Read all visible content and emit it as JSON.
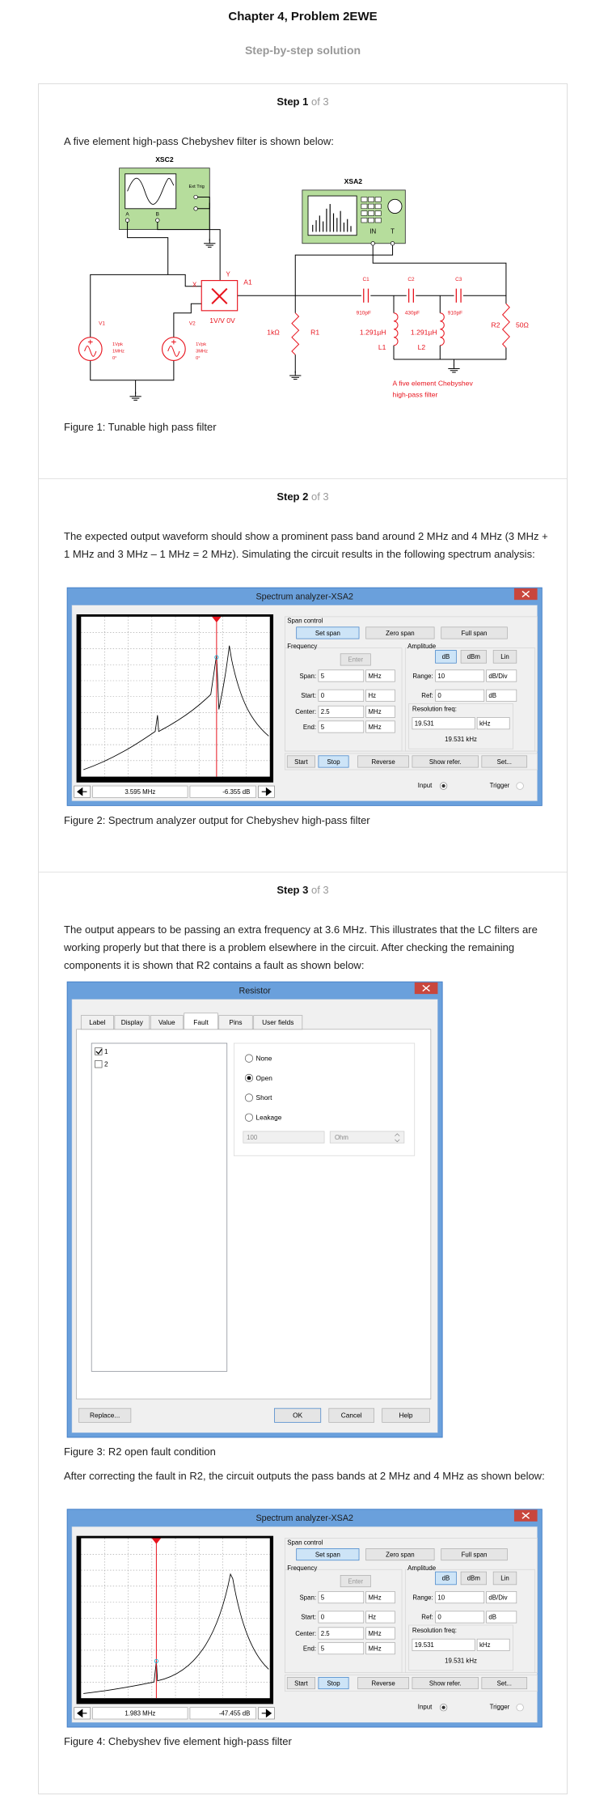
{
  "header": {
    "title": "Chapter 4, Problem 2EWE",
    "subtitle": "Step-by-step solution"
  },
  "steps": [
    {
      "label": "Step 1",
      "count": "of 3",
      "text": "A five element high-pass Chebyshev filter is shown below:",
      "caption": "Figure 1: Tunable high pass filter"
    },
    {
      "label": "Step 2",
      "count": "of 3",
      "text": "The expected output waveform should show a prominent pass band around 2 MHz and 4 MHz (3 MHz + 1 MHz and 3 MHz – 1 MHz = 2 MHz). Simulating the circuit results in the following spectrum analysis:",
      "caption": "Figure 2: Spectrum analyzer output for Chebyshev high-pass filter"
    },
    {
      "label": "Step 3",
      "count": "of 3",
      "text": "The output appears to be passing an extra frequency at 3.6 MHz. This illustrates that the LC filters are working properly but that there is a problem elsewhere in the circuit. After checking the remaining components it is shown that R2 contains a fault as shown below:",
      "caption": "Figure 3: R2 open fault condition",
      "text2": "After correcting the fault in R2, the circuit outputs the pass bands at 2 MHz and 4 MHz as shown below:",
      "caption2": "Figure 4: Chebyshev five element high-pass filter"
    }
  ],
  "circuit": {
    "scope_name": "XSC2",
    "ext_trig": "Ext Trig",
    "scope_a": "A",
    "scope_b": "B",
    "analyzer_name": "XSA2",
    "analyzer_in": "IN",
    "analyzer_t": "T",
    "v1": "V1",
    "v1_amp": "1Vpk",
    "v1_freq": "1MHz",
    "v1_phase": "0°",
    "v2": "V2",
    "v2_amp": "1Vpk",
    "v2_freq": "3MHz",
    "v2_phase": "0°",
    "mult_x": "X",
    "mult_y": "Y",
    "mult_name": "A1",
    "mult_gain": "1V/V 0V",
    "r1_value": "1kΩ",
    "r1": "R1",
    "c1": "C1",
    "c1_value": "910pF",
    "l1_value": "1.291µH",
    "l1": "L1",
    "c2": "C2",
    "c2_value": "430pF",
    "l2_value": "1.291µH",
    "l2": "L2",
    "c3": "C3",
    "c3_value": "910pF",
    "r2": "R2",
    "r2_value": "50Ω",
    "note_line1": "A five element Chebyshev",
    "note_line2": "high-pass filter"
  },
  "analyzers": [
    {
      "title": "Spectrum analyzer-XSA2",
      "span_control": "Span control",
      "set_span": "Set span",
      "zero_span": "Zero span",
      "full_span": "Full span",
      "frequency": "Frequency",
      "amplitude": "Amplitude",
      "enter": "Enter",
      "db": "dB",
      "dbm": "dBm",
      "lin": "Lin",
      "span_label": "Span:",
      "span_value": "5",
      "span_unit": "MHz",
      "range_label": "Range:",
      "range_value": "10",
      "range_unit": "dB/Div",
      "start_label": "Start:",
      "start_value": "0",
      "start_unit": "Hz",
      "ref_label": "Ref:",
      "ref_value": "0",
      "ref_unit": "dB",
      "center_label": "Center:",
      "center_value": "2.5",
      "center_unit": "MHz",
      "resolution_label": "Resolution freq:",
      "resolution_value": "19.531",
      "resolution_unit": "kHz",
      "resolution_readout": "19.531 kHz",
      "end_label": "End:",
      "end_value": "5",
      "end_unit": "MHz",
      "start_button": "Start",
      "stop_button": "Stop",
      "reverse_button": "Reverse",
      "show_refer_button": "Show refer.",
      "set_button": "Set...",
      "input": "Input",
      "trigger": "Trigger",
      "marker_frequency": "3.595 MHz",
      "marker_level": "-6.355  dB"
    },
    {
      "title": "Spectrum analyzer-XSA2",
      "span_control": "Span control",
      "set_span": "Set span",
      "zero_span": "Zero span",
      "full_span": "Full span",
      "frequency": "Frequency",
      "amplitude": "Amplitude",
      "enter": "Enter",
      "db": "dB",
      "dbm": "dBm",
      "lin": "Lin",
      "span_label": "Span:",
      "span_value": "5",
      "span_unit": "MHz",
      "range_label": "Range:",
      "range_value": "10",
      "range_unit": "dB/Div",
      "start_label": "Start:",
      "start_value": "0",
      "start_unit": "Hz",
      "ref_label": "Ref:",
      "ref_value": "0",
      "ref_unit": "dB",
      "center_label": "Center:",
      "center_value": "2.5",
      "center_unit": "MHz",
      "resolution_label": "Resolution freq:",
      "resolution_value": "19.531",
      "resolution_unit": "kHz",
      "resolution_readout": "19.531 kHz",
      "end_label": "End:",
      "end_value": "5",
      "end_unit": "MHz",
      "start_button": "Start",
      "stop_button": "Stop",
      "reverse_button": "Reverse",
      "show_refer_button": "Show refer.",
      "set_button": "Set...",
      "input": "Input",
      "trigger": "Trigger",
      "marker_frequency": "1.983 MHz",
      "marker_level": "-47.455  dB"
    }
  ],
  "resistor": {
    "title": "Resistor",
    "tabs": [
      "Label",
      "Display",
      "Value",
      "Fault",
      "Pins",
      "User fields"
    ],
    "items": [
      "1",
      "2"
    ],
    "options": [
      "None",
      "Open",
      "Short",
      "Leakage"
    ],
    "leakage_value": "100",
    "leakage_unit": "Ohm",
    "buttons": [
      "Replace...",
      "OK",
      "Cancel",
      "Help"
    ]
  }
}
